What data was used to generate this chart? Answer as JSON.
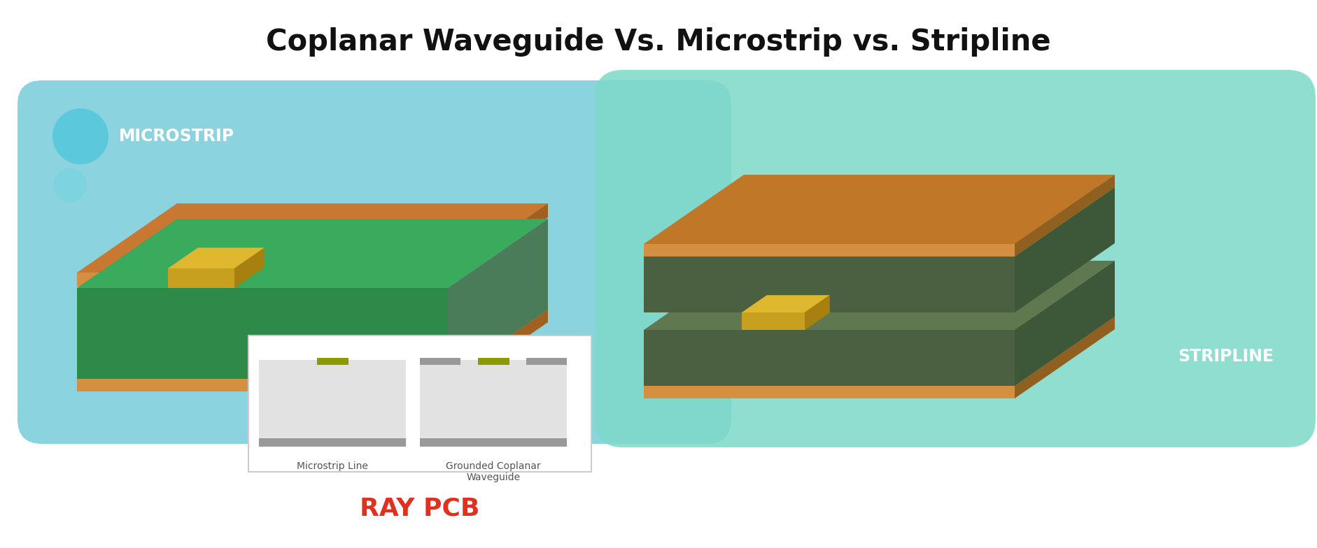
{
  "title": "Coplanar Waveguide Vs. Microstrip vs. Stripline",
  "title_fontsize": 30,
  "bg_color": "#ffffff",
  "microstrip_label": "MICROSTRIP",
  "stripline_label": "STRIPLINE",
  "raypcb_label": "RAY PCB",
  "microstrip_line_label": "Microstrip Line",
  "grounded_cpw_label": "Grounded Coplanar\nWaveguide",
  "bubble_large_color": "#5bc8dc",
  "bubble_small_color": "#7dd4e0",
  "microstrip_bg_color": "#7ecfdc",
  "stripline_bg_color": "#7dd9c8",
  "pcb_green_top": "#3aaa5c",
  "pcb_green_side": "#2d8a48",
  "pcb_green_dark": "#4a7c59",
  "pcb_copper": "#c87830",
  "pcb_copper_light": "#d49040",
  "gold_trace_top": "#e0b830",
  "gold_trace_front": "#c8a020",
  "gold_trace_side": "#a88010",
  "stripline_green_top": "#607850",
  "stripline_green_side": "#4a6040",
  "stripline_green_dark": "#3d5838",
  "stripline_copper_top": "#c07828",
  "diagram_bg": "#e4e4e4",
  "ground_gray": "#999999",
  "label_color_white": "#ffffff",
  "raypcb_color": "#e03020"
}
